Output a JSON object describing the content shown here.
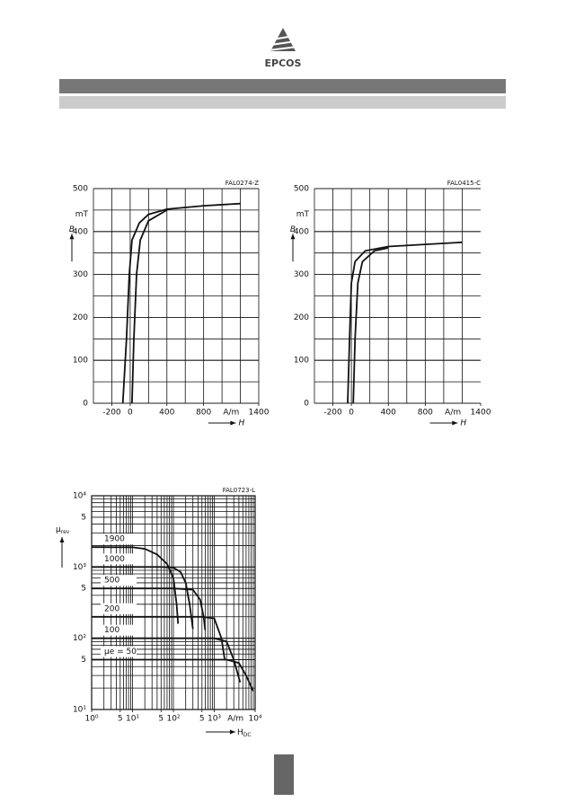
{
  "header": {
    "logo": "EPCOS"
  },
  "chart_data": [
    {
      "type": "line",
      "title": "FAL0274-Z",
      "x_label": "H",
      "x_unit": "A/m",
      "y_label": "B",
      "y_unit": "mT",
      "xlim": [
        -400,
        1400
      ],
      "ylim": [
        0,
        500
      ],
      "xticks": [
        -200,
        0,
        400,
        800,
        1400
      ],
      "yticks": [
        0,
        100,
        200,
        300,
        400,
        500
      ],
      "xgrid": [
        -400,
        -200,
        0,
        200,
        400,
        600,
        800,
        1000,
        1200,
        1400
      ],
      "ygrid": [
        0,
        50,
        100,
        150,
        200,
        250,
        300,
        350,
        400,
        450,
        500
      ],
      "series": [
        {
          "color": "#111111",
          "x": [
            -80,
            -40,
            -10,
            20,
            100,
            200,
            400,
            800,
            1200
          ],
          "values": [
            0,
            150,
            300,
            380,
            420,
            440,
            452,
            460,
            465
          ]
        },
        {
          "color": "#111111",
          "x": [
            20,
            40,
            70,
            110,
            200,
            400
          ],
          "values": [
            0,
            150,
            300,
            380,
            425,
            450
          ]
        }
      ]
    },
    {
      "type": "line",
      "title": "FAL0415-C",
      "x_label": "H",
      "x_unit": "A/m",
      "y_label": "B",
      "y_unit": "mT",
      "xlim": [
        -400,
        1400
      ],
      "ylim": [
        0,
        500
      ],
      "xticks": [
        -200,
        0,
        400,
        800,
        1400
      ],
      "yticks": [
        0,
        100,
        200,
        300,
        400,
        500
      ],
      "xgrid": [
        -400,
        -200,
        0,
        200,
        400,
        600,
        800,
        1000,
        1200
      ],
      "ygrid": [
        0,
        50,
        100,
        150,
        200,
        250,
        300,
        350,
        400,
        450,
        500
      ],
      "series": [
        {
          "color": "#111111",
          "x": [
            -40,
            -20,
            0,
            40,
            150,
            400,
            800,
            1200
          ],
          "values": [
            0,
            150,
            280,
            330,
            355,
            365,
            370,
            375
          ]
        },
        {
          "color": "#111111",
          "x": [
            20,
            40,
            70,
            120,
            250,
            400
          ],
          "values": [
            0,
            150,
            280,
            330,
            355,
            362
          ]
        }
      ]
    },
    {
      "type": "line",
      "title": "FAL0723-L",
      "x_label": {
        "main": "H",
        "sub": "DC"
      },
      "x_unit": "A/m",
      "y_label": {
        "main": "μ",
        "sub": "rev"
      },
      "log_x": true,
      "log_y": true,
      "xlim": [
        1,
        10000
      ],
      "ylim": [
        10,
        10000
      ],
      "xticks": [
        {
          "value": 1,
          "label": "10⁰"
        },
        {
          "value": 5,
          "label": "5"
        },
        {
          "value": 10,
          "label": "10¹"
        },
        {
          "value": 50,
          "label": "5"
        },
        {
          "value": 100,
          "label": "10²"
        },
        {
          "value": 500,
          "label": "5"
        },
        {
          "value": 1000,
          "label": "10³"
        },
        {
          "value": 10000,
          "label": "10⁴"
        }
      ],
      "yticks": [
        {
          "value": 10,
          "label": "10¹"
        },
        {
          "value": 50,
          "label": "5"
        },
        {
          "value": 100,
          "label": "10²"
        },
        {
          "value": 500,
          "label": "5"
        },
        {
          "value": 1000,
          "label": "10³"
        },
        {
          "value": 5000,
          "label": "5"
        },
        {
          "value": 10000,
          "label": "10⁴"
        }
      ],
      "series": [
        {
          "name": "1900",
          "color": "#111111",
          "x": [
            1,
            10,
            20,
            40,
            70,
            100,
            120,
            130
          ],
          "values": [
            1900,
            1890,
            1800,
            1500,
            1100,
            700,
            300,
            160
          ]
        },
        {
          "name": "1000",
          "color": "#111111",
          "x": [
            1,
            50,
            100,
            150,
            200,
            250,
            300
          ],
          "values": [
            1000,
            1000,
            980,
            850,
            600,
            300,
            135
          ]
        },
        {
          "name": "500",
          "color": "#111111",
          "x": [
            1,
            100,
            300,
            450,
            550,
            600
          ],
          "values": [
            500,
            500,
            480,
            350,
            200,
            130
          ]
        },
        {
          "name": "200",
          "color": "#111111",
          "x": [
            1,
            500,
            1000,
            1500,
            1800
          ],
          "values": [
            200,
            200,
            190,
            100,
            50
          ]
        },
        {
          "name": "100",
          "color": "#111111",
          "x": [
            1,
            1000,
            2000,
            3000,
            4300
          ],
          "values": [
            100,
            100,
            90,
            50,
            24
          ]
        },
        {
          "name": "μe = 50",
          "color": "#111111",
          "x": [
            1,
            2000,
            4000,
            6000,
            9000
          ],
          "values": [
            50,
            50,
            45,
            30,
            18
          ]
        }
      ]
    }
  ]
}
